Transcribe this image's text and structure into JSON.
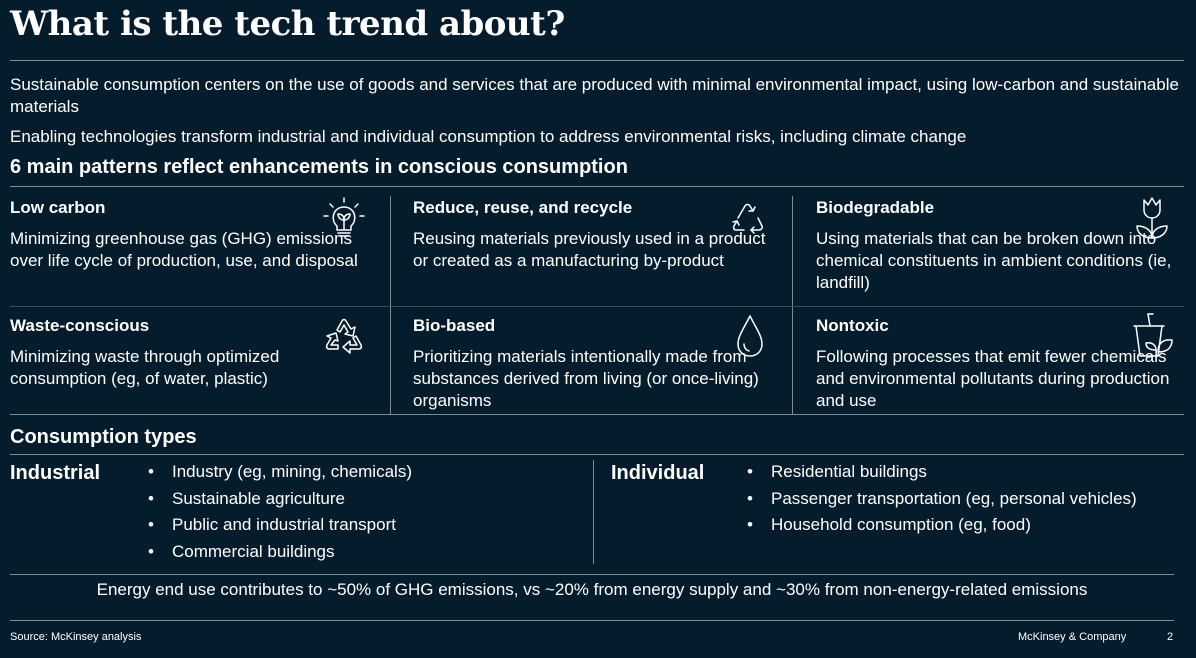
{
  "title": "What is the tech trend about?",
  "intro": [
    "Sustainable consumption centers on the use of goods and services that are produced with minimal environmental impact, using low-carbon and sustainable materials",
    "Enabling technologies transform industrial and individual consumption to address environmental risks, including climate change"
  ],
  "patterns_heading": "6 main patterns reflect enhancements in conscious consumption",
  "patterns": [
    {
      "title": "Low carbon",
      "desc": "Minimizing greenhouse gas (GHG) emissions over life cycle of production, use, and disposal",
      "icon": "lightbulb-plant-icon"
    },
    {
      "title": "Reduce, reuse, and recycle",
      "desc": "Reusing materials previously used in a product or created as a manufacturing by-product",
      "icon": "recycle-arrows-icon"
    },
    {
      "title": "Biodegradable",
      "desc": "Using materials that can be broken down into chemical constituents in ambient conditions (ie, landfill)",
      "icon": "tulip-icon"
    },
    {
      "title": "Waste-conscious",
      "desc": "Minimizing waste through optimized consumption (eg, of water, plastic)",
      "icon": "recycle-symbol-icon"
    },
    {
      "title": "Bio-based",
      "desc": "Prioritizing materials intentionally made from substances derived from living (or once-living) organisms",
      "icon": "water-drop-icon"
    },
    {
      "title": "Nontoxic",
      "desc": "Following processes that emit fewer chemicals and environmental pollutants during production and use",
      "icon": "cup-leaves-icon"
    }
  ],
  "consumption": {
    "heading": "Consumption types",
    "industrial": {
      "label": "Industrial",
      "items": [
        "Industry (eg, mining, chemicals)",
        "Sustainable agriculture",
        "Public and industrial transport",
        "Commercial buildings"
      ]
    },
    "individual": {
      "label": "Individual",
      "items": [
        "Residential buildings",
        "Passenger transportation (eg, personal vehicles)",
        "Household consumption (eg, food)"
      ]
    }
  },
  "energy_note": "Energy end use contributes to ~50% of GHG emissions, vs ~20% from energy supply and ~30% from non-energy-related emissions",
  "footer": {
    "source": "Source: McKinsey analysis",
    "company": "McKinsey & Company",
    "page": "2"
  }
}
